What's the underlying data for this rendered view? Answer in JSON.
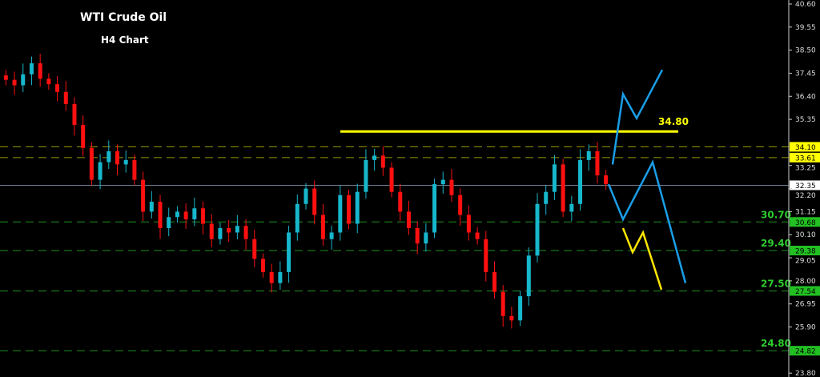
{
  "header": {
    "title": "WTI Crude Oil",
    "subtitle": "H4 Chart"
  },
  "colors": {
    "bull": "#17b7cc",
    "bear": "#ff1010",
    "support": "#22b822",
    "resistance": "#c8c800",
    "projection": "#1a9ee8",
    "alt_projection": "#ffe600",
    "current": "#8a9ab0"
  },
  "chart_data": {
    "type": "candlestick",
    "title": "WTI Crude Oil",
    "subtitle": "H4 Chart",
    "ylim": [
      23.8,
      40.6
    ],
    "y_ticks": [
      "40.60",
      "39.55",
      "38.50",
      "37.45",
      "36.40",
      "35.35",
      "33.25",
      "32.20",
      "31.15",
      "30.10",
      "29.05",
      "28.00",
      "26.95",
      "25.90",
      "23.80"
    ],
    "closes": [
      37.15,
      36.9,
      37.4,
      37.9,
      37.2,
      36.95,
      36.6,
      36.05,
      35.1,
      34.05,
      32.6,
      33.4,
      33.9,
      33.3,
      33.5,
      32.6,
      31.15,
      31.6,
      30.4,
      30.9,
      31.15,
      30.8,
      31.3,
      30.6,
      29.9,
      30.4,
      30.2,
      30.5,
      29.9,
      29.0,
      28.4,
      27.9,
      28.4,
      30.2,
      31.5,
      32.2,
      31.0,
      29.9,
      30.2,
      31.9,
      30.6,
      32.05,
      33.5,
      33.7,
      33.15,
      32.05,
      31.15,
      30.4,
      29.7,
      30.2,
      32.4,
      32.6,
      31.9,
      31.0,
      30.2,
      29.9,
      28.4,
      27.5,
      26.4,
      26.2,
      27.3,
      29.15,
      31.5,
      32.05,
      33.3,
      31.15,
      31.5,
      33.5,
      33.9,
      32.8,
      32.4
    ],
    "horizontal_levels": [
      {
        "price": 34.1,
        "label": "34.10",
        "style": "dashed",
        "color": "resistance"
      },
      {
        "price": 33.61,
        "label": "33.61",
        "style": "dashed",
        "color": "resistance"
      },
      {
        "price": 32.35,
        "label": "32.35",
        "style": "solid",
        "color": "current"
      },
      {
        "price": 30.68,
        "label": "30.68",
        "style": "dashed",
        "color": "support",
        "annotation": "30.70"
      },
      {
        "price": 29.38,
        "label": "29.38",
        "style": "dashed",
        "color": "support",
        "annotation": "29.40"
      },
      {
        "price": 27.54,
        "label": "27.54",
        "style": "dashed",
        "color": "support",
        "annotation": "27.50"
      },
      {
        "price": 24.82,
        "label": "24.82",
        "style": "dashed",
        "color": "support",
        "annotation": "24.80"
      }
    ],
    "resistance_line": {
      "price": 34.8,
      "label": "34.80"
    },
    "projections": [
      {
        "name": "bullish",
        "color": "projection",
        "prices": [
          33.3,
          36.5,
          35.4,
          37.6
        ]
      },
      {
        "name": "bearish",
        "color": "projection",
        "prices": [
          32.4,
          30.8,
          33.4,
          27.9
        ]
      },
      {
        "name": "alternate",
        "color": "alt_projection",
        "prices": [
          30.4,
          29.3,
          30.2,
          27.6
        ]
      }
    ]
  }
}
